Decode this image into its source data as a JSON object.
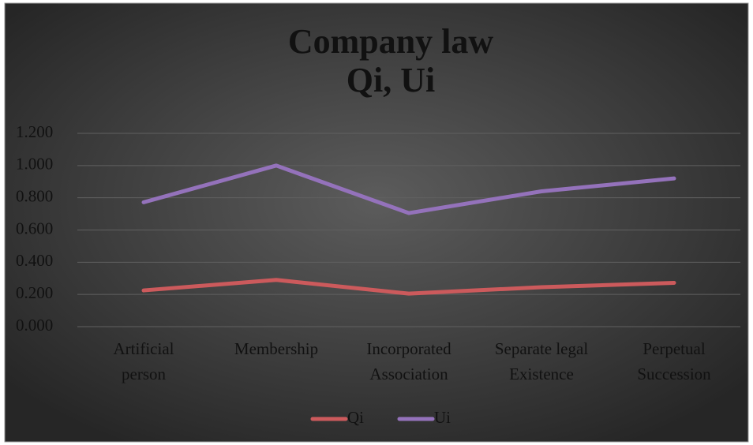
{
  "chart_data": {
    "type": "line",
    "title": "Company law",
    "subtitle": "Qi, Ui",
    "categories": [
      "Artificial\nperson",
      "Membership",
      "Incorporated\nAssociation",
      "Separate legal\nExistence",
      "Perpetual\nSuccession"
    ],
    "series": [
      {
        "name": "Qi",
        "color": "#cc5a5c",
        "values": [
          0.225,
          0.29,
          0.205,
          0.245,
          0.272
        ]
      },
      {
        "name": "Ui",
        "color": "#9472bb",
        "values": [
          0.772,
          1.0,
          0.705,
          0.84,
          0.92
        ]
      }
    ],
    "ylim": [
      0,
      1.2
    ],
    "yticks": [
      {
        "value": 0,
        "label": "0.000"
      },
      {
        "value": 0.2,
        "label": "0.200"
      },
      {
        "value": 0.4,
        "label": "0.400"
      },
      {
        "value": 0.6,
        "label": "0.600"
      },
      {
        "value": 0.8,
        "label": "0.800"
      },
      {
        "value": 1.0,
        "label": "1.000"
      },
      {
        "value": 1.2,
        "label": "1.200"
      }
    ],
    "grid": true,
    "legend": "bottom"
  }
}
